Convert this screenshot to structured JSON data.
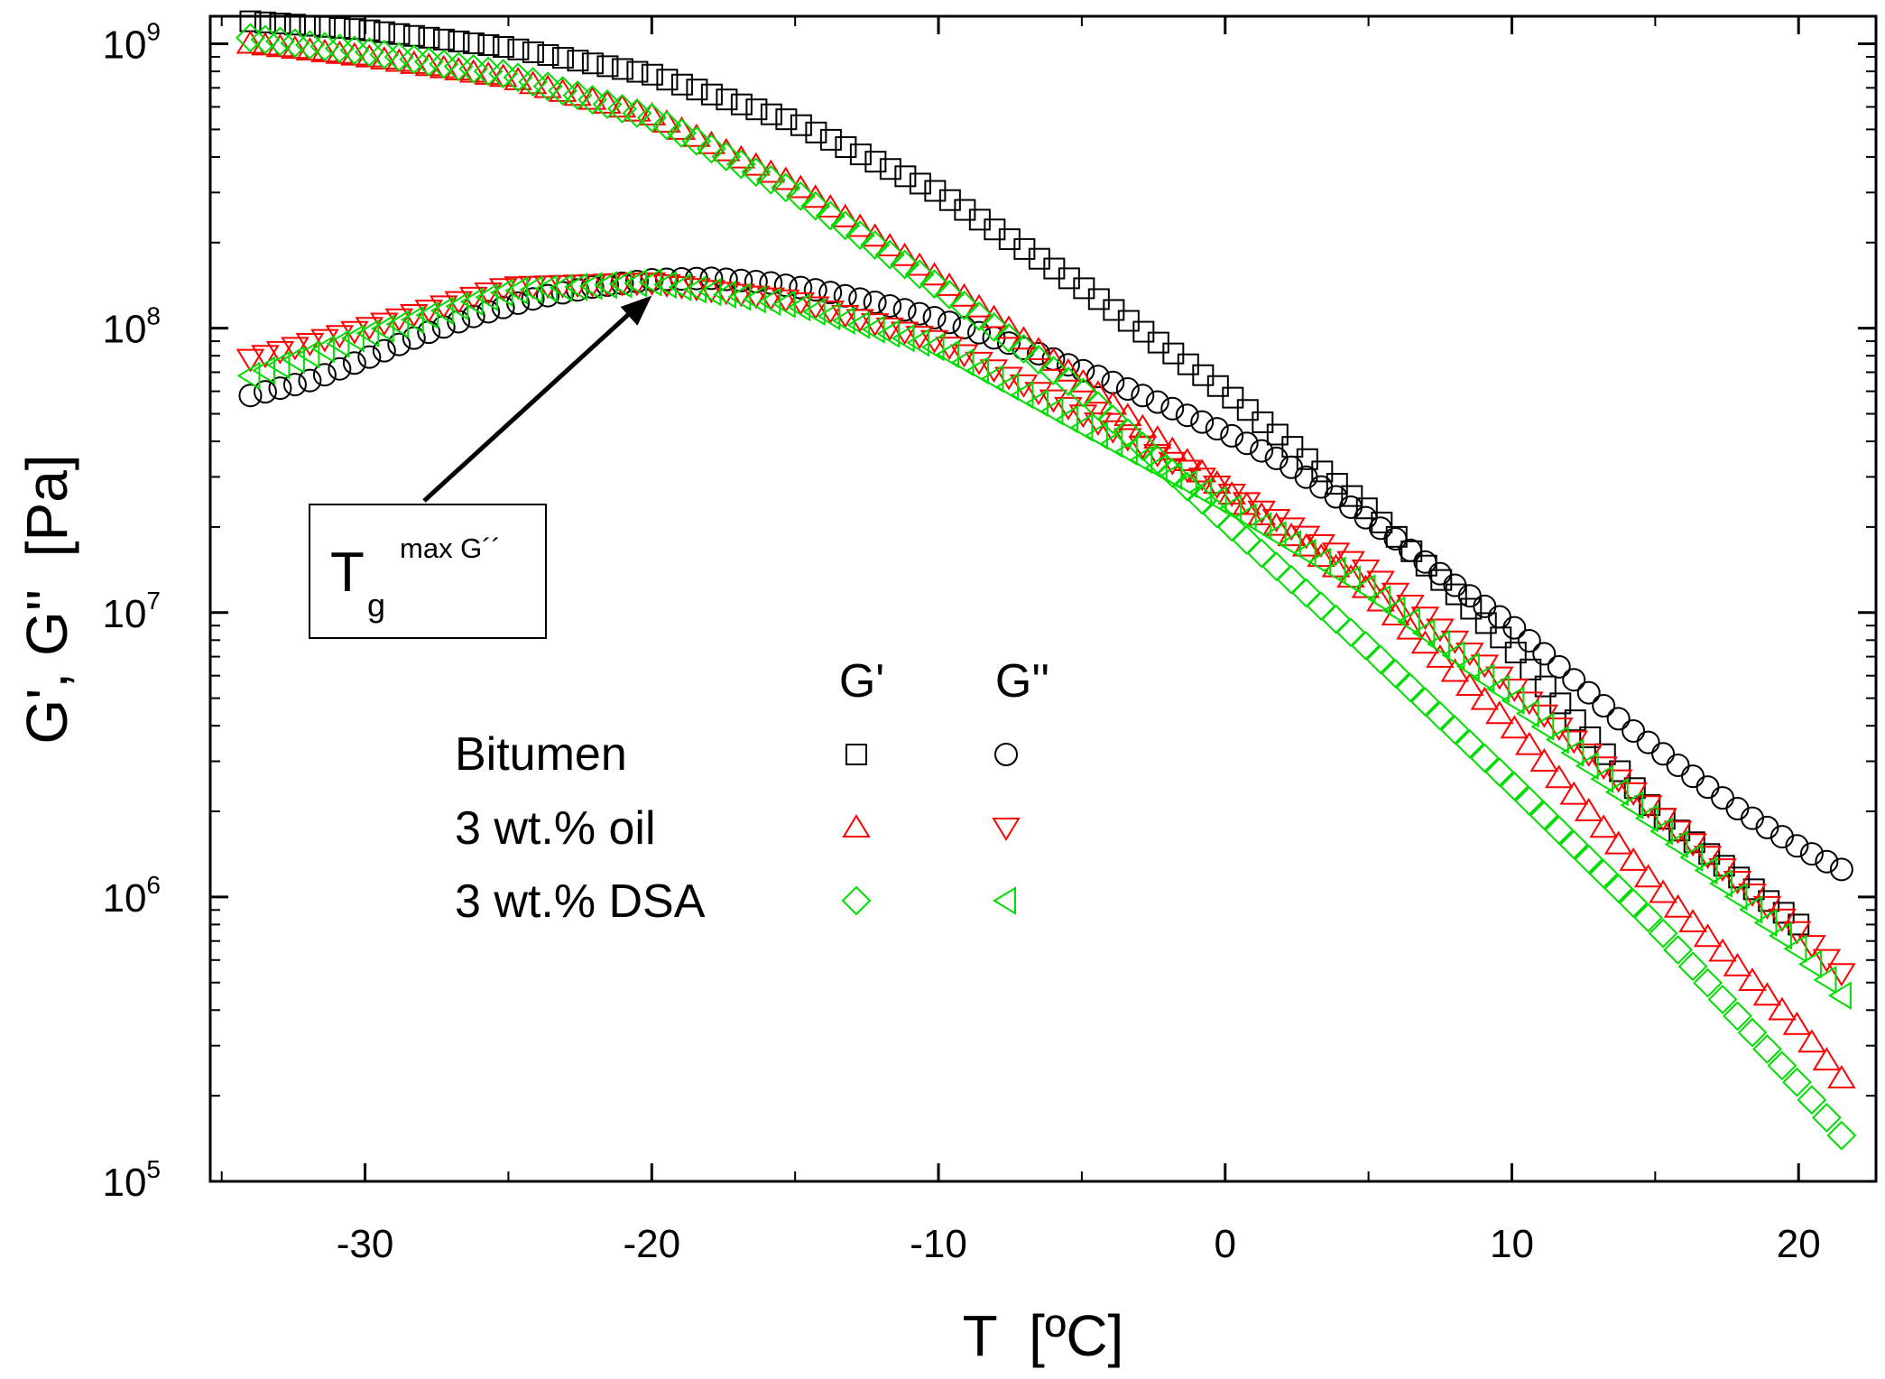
{
  "chart_data": {
    "type": "scatter",
    "title": "",
    "xlabel": "T  [ºC]",
    "ylabel": "G', G''  [Pa]",
    "xlim": [
      -35.4,
      22.7
    ],
    "ylim": [
      100000,
      1250000000
    ],
    "yscale": "log",
    "x_ticks": [
      -30,
      -20,
      -10,
      0,
      10,
      20
    ],
    "x_tick_labels": [
      "-30",
      "-20",
      "-10",
      "0",
      "10",
      "20"
    ],
    "y_ticks": [
      {
        "value": 100000,
        "base": "10",
        "exp": "5"
      },
      {
        "value": 1000000,
        "base": "10",
        "exp": "6"
      },
      {
        "value": 10000000,
        "base": "10",
        "exp": "7"
      },
      {
        "value": 100000000,
        "base": "10",
        "exp": "8"
      },
      {
        "value": 1000000000,
        "base": "10",
        "exp": "9"
      }
    ],
    "legend": {
      "position": "center",
      "col_headers": [
        "G'",
        "G''"
      ],
      "rows": [
        "Bitumen",
        "3 wt.% oil",
        "3 wt.% DSA"
      ]
    },
    "annotation": {
      "text": "T",
      "sub": "g",
      "sup": "max G´´",
      "points_to": {
        "x": -20,
        "y": 140000000
      }
    },
    "series": [
      {
        "name": "Bitumen G'",
        "marker": "square",
        "color": "#000000",
        "x": [
          -34,
          -30,
          -25,
          -20,
          -15,
          -10,
          -5,
          0,
          5,
          10,
          15,
          20
        ],
        "y": [
          1200000000,
          1120000000,
          970000000,
          780000000,
          530000000,
          300000000,
          140000000,
          60000000,
          23000000,
          7500000,
          2000000,
          800000
        ]
      },
      {
        "name": "Bitumen G''",
        "marker": "circle",
        "color": "#000000",
        "x": [
          -34,
          -32,
          -30,
          -28,
          -26,
          -24,
          -22,
          -20,
          -18,
          -16,
          -14,
          -12,
          -10,
          -8,
          -6,
          -4,
          -2,
          0,
          2,
          4,
          6,
          8,
          10,
          12,
          14,
          16,
          18,
          20,
          21.5
        ],
        "y": [
          58000000,
          65000000,
          78000000,
          95000000,
          112000000,
          128000000,
          140000000,
          148000000,
          150000000,
          145000000,
          135000000,
          122000000,
          108000000,
          92000000,
          78000000,
          65000000,
          53000000,
          43000000,
          34000000,
          25000000,
          18000000,
          12500000,
          9000000,
          6000000,
          4000000,
          2800000,
          2000000,
          1500000,
          1250000
        ]
      },
      {
        "name": "3 wt.% oil G'",
        "marker": "triangle-up",
        "color": "#ff0000",
        "x": [
          -34,
          -30,
          -25,
          -20,
          -15,
          -10,
          -5,
          0,
          5,
          10,
          15,
          20,
          21.5
        ],
        "y": [
          1000000000,
          900000000,
          760000000,
          560000000,
          320000000,
          150000000,
          65000000,
          27000000,
          12000000,
          4000000,
          1100000,
          350000,
          230000
        ]
      },
      {
        "name": "3 wt.% oil G''",
        "marker": "triangle-down",
        "color": "#ff0000",
        "x": [
          -34,
          -30,
          -25,
          -20,
          -15,
          -10,
          -5,
          0,
          5,
          10,
          15,
          20,
          21.5
        ],
        "y": [
          78000000,
          100000000,
          140000000,
          145000000,
          125000000,
          90000000,
          50000000,
          27000000,
          14000000,
          5500000,
          2000000,
          750000,
          540000
        ]
      },
      {
        "name": "3 wt.% DSA G'",
        "marker": "diamond",
        "color": "#00dd00",
        "x": [
          -34,
          -30,
          -25,
          -20,
          -15,
          -10,
          -5,
          0,
          5,
          10,
          15,
          20,
          21.5
        ],
        "y": [
          1050000000,
          940000000,
          780000000,
          550000000,
          300000000,
          140000000,
          60000000,
          21000000,
          7500000,
          2500000,
          800000,
          220000,
          145000
        ]
      },
      {
        "name": "3 wt.% DSA G''",
        "marker": "triangle-left",
        "color": "#00dd00",
        "x": [
          -34,
          -30,
          -25,
          -20,
          -15,
          -10,
          -5,
          0,
          5,
          10,
          15,
          20,
          21.5
        ],
        "y": [
          68000000,
          95000000,
          135000000,
          145000000,
          120000000,
          85000000,
          45000000,
          24000000,
          12000000,
          5000000,
          1800000,
          650000,
          450000
        ]
      }
    ]
  }
}
